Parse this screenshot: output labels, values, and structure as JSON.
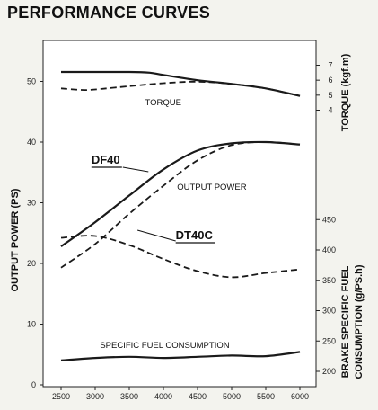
{
  "title": "PERFORMANCE CURVES",
  "chart_data": {
    "type": "line",
    "x": [
      2500,
      3000,
      3500,
      4000,
      4500,
      5000,
      5500,
      6000
    ],
    "x_ticks": [
      2500,
      3000,
      3500,
      4000,
      4500,
      5000,
      5500,
      6000
    ],
    "xlim": [
      2500,
      6000
    ],
    "y_left": {
      "label": "OUTPUT POWER (PS)",
      "ticks": [
        0,
        10,
        20,
        30,
        40,
        50
      ],
      "ylim": [
        0,
        56
      ]
    },
    "y_right_torque": {
      "label": "TORQUE (kgf.m)",
      "ticks": [
        4,
        5,
        6,
        7
      ]
    },
    "y_right_fuel": {
      "label_line1": "BRAKE SPECIFIC FUEL",
      "label_line2": "CONSUMPTION (g/PS.h)",
      "ticks": [
        200,
        250,
        300,
        350,
        400,
        450
      ]
    },
    "grid": false,
    "series": [
      {
        "name": "DF40",
        "group": "OUTPUT POWER",
        "style": "solid",
        "axis": "left",
        "points": [
          [
            2500,
            22.8
          ],
          [
            3000,
            26.8
          ],
          [
            3500,
            31.2
          ],
          [
            4000,
            35.5
          ],
          [
            4500,
            38.6
          ],
          [
            5000,
            39.8
          ],
          [
            5500,
            40.0
          ],
          [
            6000,
            39.6
          ]
        ]
      },
      {
        "name": "DT40C",
        "group": "OUTPUT POWER",
        "style": "dashed",
        "axis": "left",
        "points": [
          [
            2500,
            19.3
          ],
          [
            3000,
            23.2
          ],
          [
            3500,
            28.2
          ],
          [
            4000,
            32.8
          ],
          [
            4500,
            37.0
          ],
          [
            5000,
            39.5
          ],
          [
            5500,
            40.0
          ],
          [
            6000,
            39.6
          ]
        ]
      },
      {
        "name": "DF40",
        "group": "TORQUE",
        "style": "solid",
        "axis": "right_torque",
        "points": [
          [
            2500,
            6.55
          ],
          [
            3000,
            6.55
          ],
          [
            3500,
            6.55
          ],
          [
            3800,
            6.5
          ],
          [
            4000,
            6.35
          ],
          [
            4500,
            6.0
          ],
          [
            5000,
            5.75
          ],
          [
            5500,
            5.45
          ],
          [
            6000,
            4.95
          ]
        ]
      },
      {
        "name": "DT40C",
        "group": "TORQUE",
        "style": "dashed",
        "axis": "right_torque",
        "points": [
          [
            2500,
            5.45
          ],
          [
            2800,
            5.35
          ],
          [
            3000,
            5.38
          ],
          [
            3500,
            5.6
          ],
          [
            4000,
            5.8
          ],
          [
            4500,
            5.9
          ],
          [
            5000,
            5.75
          ],
          [
            5500,
            5.45
          ],
          [
            6000,
            4.95
          ]
        ]
      },
      {
        "name": "DT40C",
        "group": "SPECIFIC FUEL CONSUMPTION",
        "style": "dashed",
        "axis": "right_fuel",
        "points": [
          [
            2500,
            420
          ],
          [
            3000,
            423
          ],
          [
            3500,
            408
          ],
          [
            4000,
            385
          ],
          [
            4500,
            365
          ],
          [
            5000,
            355
          ],
          [
            5500,
            362
          ],
          [
            6000,
            368
          ]
        ]
      },
      {
        "name": "DF40",
        "group": "SPECIFIC FUEL CONSUMPTION",
        "style": "solid",
        "axis": "right_fuel",
        "points": [
          [
            2500,
            218
          ],
          [
            3000,
            222
          ],
          [
            3500,
            224
          ],
          [
            4000,
            222
          ],
          [
            4500,
            224
          ],
          [
            5000,
            226
          ],
          [
            5500,
            225
          ],
          [
            6000,
            232
          ]
        ]
      }
    ],
    "annotations": {
      "torque": "TORQUE",
      "output_power": "OUTPUT POWER",
      "df40": "DF40",
      "dt40c": "DT40C",
      "fuel": "SPECIFIC FUEL CONSUMPTION"
    }
  }
}
